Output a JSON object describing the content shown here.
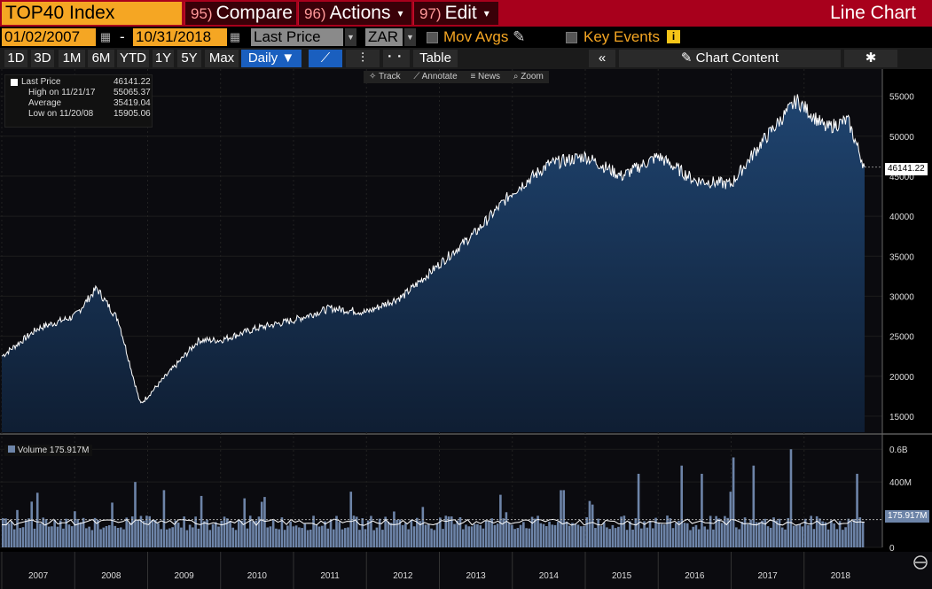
{
  "header": {
    "ticker": "TOP40 Index",
    "compare_num": "95)",
    "compare_label": "Compare",
    "actions_num": "96)",
    "actions_label": "Actions",
    "edit_num": "97)",
    "edit_label": "Edit",
    "chart_title": "Line Chart",
    "caret": "▾"
  },
  "range": {
    "start_date": "01/02/2007",
    "separator": "-",
    "end_date": "10/31/2018",
    "field": "Last Price",
    "currency": "ZAR",
    "mov_avgs_label": "Mov Avgs",
    "key_events_label": "Key Events",
    "info_glyph": "i",
    "pencil_glyph": "✎"
  },
  "periods": [
    "1D",
    "3D",
    "1M",
    "6M",
    "YTD",
    "1Y",
    "5Y",
    "Max"
  ],
  "frequency": "Daily ▼",
  "toolbar_row": {
    "line_glyph": "⟋",
    "bar_glyph": "⫶",
    "dots_glyph": "⠂⠂",
    "table_label": "Table",
    "collapse_glyph": "«",
    "chart_content_label": "Chart Content",
    "pencil_glyph": "✎",
    "gear_glyph": "✱"
  },
  "chart_tools": [
    "✧ Track",
    "⟋ Annotate",
    "≡ News",
    "⌕ Zoom"
  ],
  "legend": [
    {
      "label": "Last Price",
      "value": "46141.22"
    },
    {
      "label": "High on 11/21/17",
      "value": "55065.37"
    },
    {
      "label": "Average",
      "value": "35419.04"
    },
    {
      "label": "Low on 11/20/08",
      "value": "15905.06"
    }
  ],
  "volume_legend": {
    "label": "Volume",
    "value": "175.917M"
  },
  "colors": {
    "accent_orange": "#f5a623",
    "header_red": "#a8001c",
    "area_fill": "#17304f",
    "volume_fill": "#6d84a8"
  },
  "chart_data": [
    {
      "type": "area",
      "series_name": "Last Price",
      "x_years": [
        2007,
        2007.5,
        2008,
        2008.3,
        2008.6,
        2008.9,
        2009.3,
        2009.7,
        2010,
        2010.5,
        2011,
        2011.5,
        2012,
        2012.5,
        2013,
        2013.5,
        2014,
        2014.5,
        2015,
        2015.5,
        2016,
        2016.5,
        2017,
        2017.4,
        2017.9,
        2018.3,
        2018.6,
        2018.83
      ],
      "y_values": [
        22500,
        26000,
        27500,
        31000,
        27000,
        16500,
        20500,
        24500,
        24500,
        26000,
        27000,
        28500,
        28000,
        30000,
        34000,
        38000,
        43000,
        46500,
        47500,
        45000,
        47500,
        44500,
        44000,
        49000,
        54500,
        51000,
        52000,
        46141
      ],
      "xlim": [
        2007,
        2018.83
      ],
      "ylim": [
        13000,
        57500
      ],
      "y_ticks": [
        15000,
        20000,
        25000,
        30000,
        35000,
        40000,
        45000,
        50000,
        55000
      ],
      "y_tick_labels": [
        "15000",
        "20000",
        "25000",
        "30000",
        "35000",
        "40000",
        "45000",
        "50000",
        "55000"
      ],
      "last_value_label": "46141.22"
    },
    {
      "type": "bar",
      "series_name": "Volume",
      "base_level_millions": 150,
      "spike_years": [
        2008.8,
        2009.2,
        2010.3,
        2014.7,
        2015.7,
        2016.3,
        2016.6,
        2017.0,
        2017.3,
        2017.8,
        2018.7
      ],
      "spike_values_millions": [
        400,
        350,
        300,
        350,
        450,
        500,
        450,
        550,
        500,
        600,
        450
      ],
      "ylim_millions": [
        0,
        650
      ],
      "y_ticks": [
        0,
        400,
        600
      ],
      "y_tick_labels": [
        "0",
        "400M",
        "0.6B"
      ],
      "last_value_label": "175.917M"
    }
  ],
  "x_axis_labels": [
    "2007",
    "2008",
    "2009",
    "2010",
    "2011",
    "2012",
    "2013",
    "2014",
    "2015",
    "2016",
    "2017",
    "2018"
  ]
}
